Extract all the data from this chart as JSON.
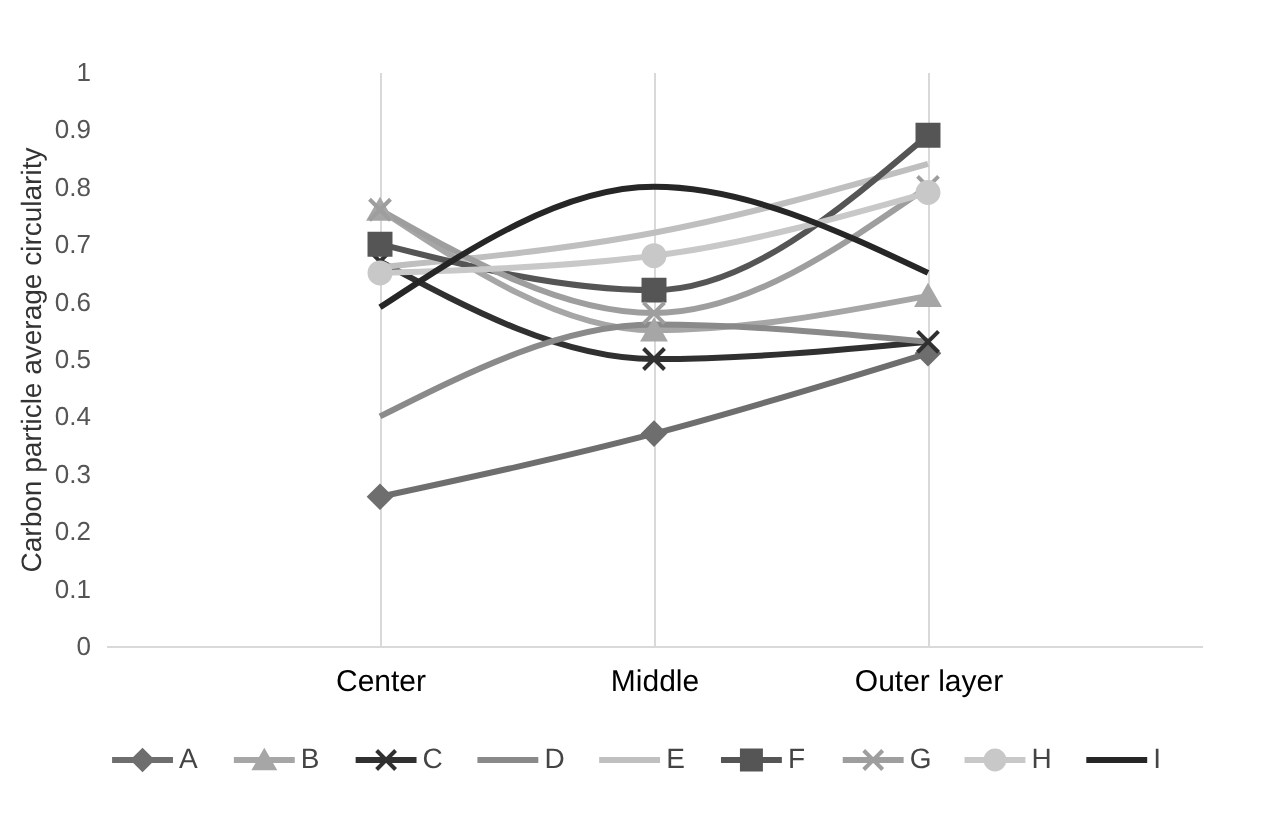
{
  "chart_data": {
    "type": "line",
    "ylabel": "Carbon particle average circularity",
    "categories": [
      null,
      "Center",
      "Middle",
      "Outer layer",
      null
    ],
    "ylim": [
      0,
      1
    ],
    "yticks": [
      0,
      0.1,
      0.2,
      0.3,
      0.4,
      0.5,
      0.6,
      0.7,
      0.8,
      0.9,
      1
    ],
    "line_style": "solid",
    "grid": "x",
    "legend": "bottom",
    "series": [
      {
        "name": "A",
        "color": "#6e6e6e",
        "marker": "diamond",
        "values": [
          null,
          0.26,
          0.37,
          0.51,
          null
        ]
      },
      {
        "name": "B",
        "color": "#a6a6a6",
        "marker": "triangle",
        "values": [
          null,
          0.76,
          0.55,
          0.61,
          null
        ]
      },
      {
        "name": "C",
        "color": "#303030",
        "marker": "cross",
        "values": [
          null,
          0.67,
          0.5,
          0.53,
          null
        ]
      },
      {
        "name": "D",
        "color": "#8a8a8a",
        "marker": "none",
        "values": [
          null,
          0.4,
          0.56,
          0.53,
          null
        ]
      },
      {
        "name": "E",
        "color": "#bfbfbf",
        "marker": "none",
        "values": [
          null,
          0.66,
          0.72,
          0.84,
          null
        ]
      },
      {
        "name": "F",
        "color": "#555555",
        "marker": "square",
        "values": [
          null,
          0.7,
          0.62,
          0.89,
          null
        ]
      },
      {
        "name": "G",
        "color": "#9e9e9e",
        "marker": "cross",
        "values": [
          null,
          0.76,
          0.58,
          0.8,
          null
        ]
      },
      {
        "name": "H",
        "color": "#c8c8c8",
        "marker": "circle",
        "values": [
          null,
          0.65,
          0.68,
          0.79,
          null
        ]
      },
      {
        "name": "I",
        "color": "#262626",
        "marker": "none",
        "values": [
          null,
          0.59,
          0.8,
          0.65,
          null
        ]
      }
    ]
  }
}
